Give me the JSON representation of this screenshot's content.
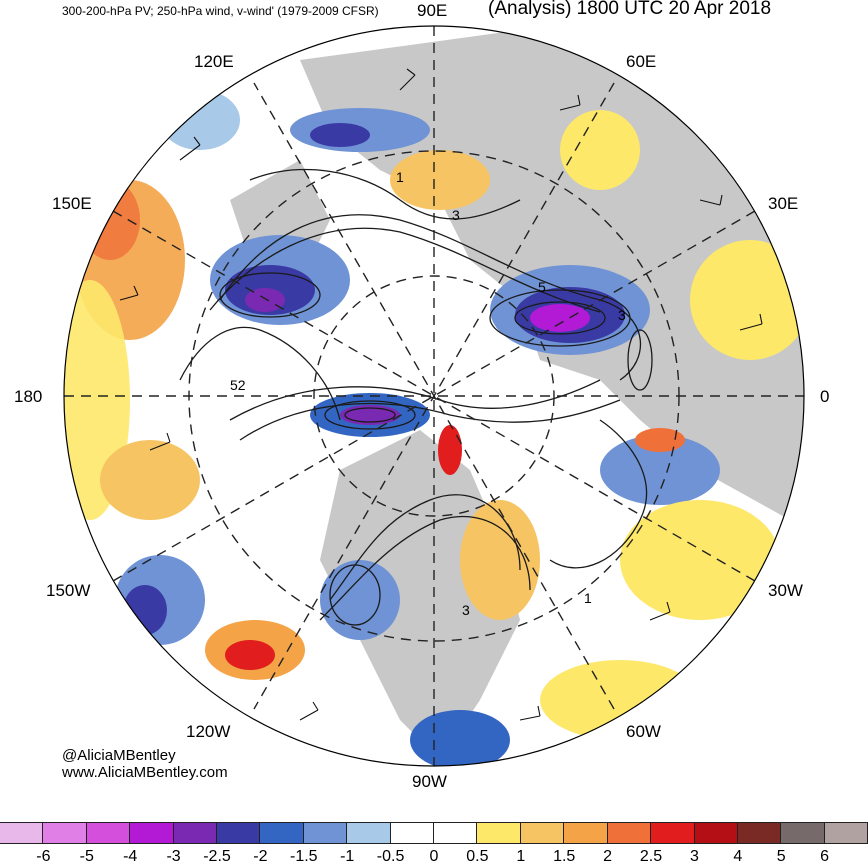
{
  "header": {
    "left_title": "300-200-hPa PV; 250-hPa wind, v-wind' (1979-2009 CFSR)",
    "right_title": "(Analysis) 1800 UTC 20 Apr 2018"
  },
  "longitude_labels": {
    "e90": "90E",
    "e60": "60E",
    "e30": "30E",
    "zero": "0",
    "w30": "30W",
    "w60": "60W",
    "w90": "90W",
    "w120": "120W",
    "w150": "150W",
    "dateline": "180",
    "e150": "150E",
    "e120": "120E"
  },
  "contour_labels": [
    "1",
    "3",
    "5",
    "52",
    "3",
    "3",
    "1"
  ],
  "credits": {
    "handle": "@AliciaMBentley",
    "website": "www.AliciaMBentley.com"
  },
  "colorbar": {
    "colors": [
      "#e9b8ea",
      "#e07fe6",
      "#d44fdc",
      "#b21ad6",
      "#7a2ab2",
      "#3a3aa5",
      "#3366c2",
      "#6f93d4",
      "#a9c9e8",
      "#ffffff",
      "#ffffff",
      "#fde86a",
      "#f6c462",
      "#f4a347",
      "#f0703a",
      "#e11d1d",
      "#b40f14",
      "#7a2a24",
      "#776a6a",
      "#b0a2a0"
    ],
    "ticks": [
      "-6",
      "-5",
      "-4",
      "-3",
      "-2.5",
      "-2",
      "-1.5",
      "-1",
      "-0.5",
      "0",
      "0.5",
      "1",
      "1.5",
      "2",
      "2.5",
      "3",
      "4",
      "5",
      "6"
    ]
  },
  "map_colors": {
    "land": "#c9c9c9",
    "ocean": "#ffffff",
    "contour": "#1a1a1a"
  }
}
